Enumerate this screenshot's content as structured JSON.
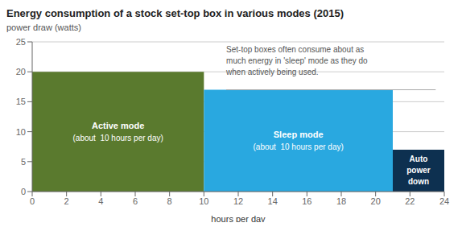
{
  "chart_data": {
    "type": "bar",
    "title": "Energy consumption of a stock set-top box in various modes (2015)",
    "subtitle": "power draw (watts)",
    "x_label": "hours per day",
    "x_start": [
      0,
      10,
      21
    ],
    "x_end": [
      10,
      21,
      24
    ],
    "values": [
      20,
      17,
      7
    ],
    "colors": [
      "#5a7a2e",
      "#29a8e0",
      "#0d3050"
    ],
    "labels": [
      "Active mode",
      "Sleep mode",
      "Auto\npower\ndown"
    ],
    "sublabels": [
      "(about  10 hours per day)",
      "(about  10 hours per day)",
      null
    ],
    "xlim": [
      0,
      24
    ],
    "ylim": [
      0,
      25
    ],
    "xticks": [
      0,
      2,
      4,
      6,
      8,
      10,
      12,
      14,
      16,
      18,
      20,
      22,
      24
    ],
    "yticks": [
      0,
      5,
      10,
      15,
      20,
      25
    ],
    "grid": true,
    "annotation": "Set-top boxes often consume about as\nmuch energy in 'sleep' mode as they do\nwhen actively being used.",
    "reference_line": {
      "y": 17,
      "x_start": 11.3,
      "x_end": 23.5
    }
  }
}
